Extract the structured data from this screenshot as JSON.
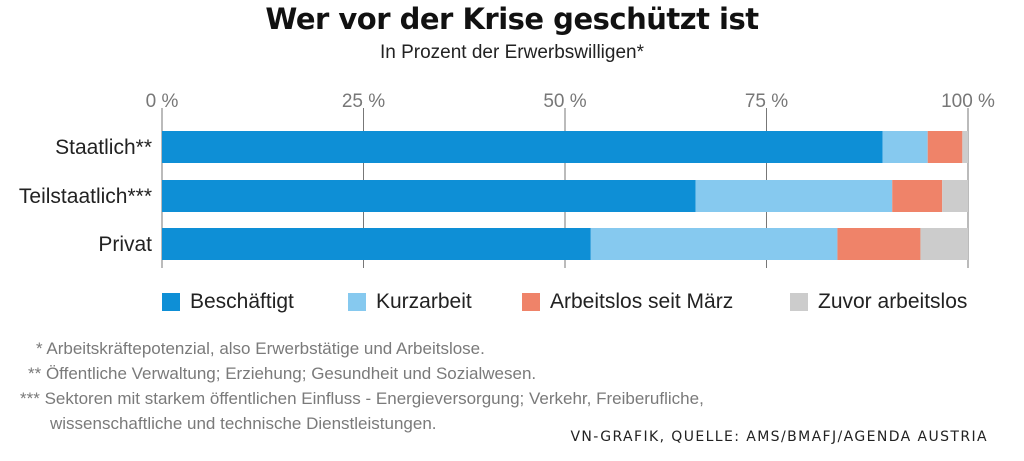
{
  "title": "Wer vor der Krise geschützt ist",
  "subtitle": "In Prozent der Erwerbswilligen*",
  "chart_data": {
    "type": "bar",
    "orientation": "horizontal",
    "stacked": true,
    "title": "Wer vor der Krise geschützt ist",
    "subtitle": "In Prozent der Erwerbswilligen*",
    "categories": [
      "Staatlich**",
      "Teilstaatlich***",
      "Privat"
    ],
    "x_ticks": [
      "0 %",
      "25 %",
      "50 %",
      "75 %",
      "100 %"
    ],
    "x_tick_values": [
      0,
      25,
      50,
      75,
      100
    ],
    "xlim": [
      0,
      100
    ],
    "grid": true,
    "legend_position": "bottom",
    "series": [
      {
        "name": "Beschäftigt",
        "color": "#0e8fd6",
        "values": [
          89.4,
          66.2,
          53.2
        ]
      },
      {
        "name": "Kurzarbeit",
        "color": "#86c9ef",
        "values": [
          5.6,
          24.4,
          30.6
        ]
      },
      {
        "name": "Arbeitslos seit März",
        "color": "#ef8369",
        "values": [
          4.3,
          6.2,
          10.3
        ]
      },
      {
        "name": "Zuvor arbeitslos",
        "color": "#cccccc",
        "values": [
          0.7,
          3.2,
          5.9
        ]
      }
    ]
  },
  "footnotes": [
    "* Arbeitskräftepotenzial, also Erwerbstätige und Arbeitslose.",
    "** Öffentliche Verwaltung; Erziehung; Gesundheit und Sozialwesen.",
    "*** Sektoren mit starkem öffentlichen Einfluss - Energieversorgung; Verkehr, Freiberufliche,",
    "wissenschaftliche und technische Dienstleistungen."
  ],
  "source": "VN-GRAFIK, QUELLE: AMS/BMAFJ/AGENDA AUSTRIA"
}
